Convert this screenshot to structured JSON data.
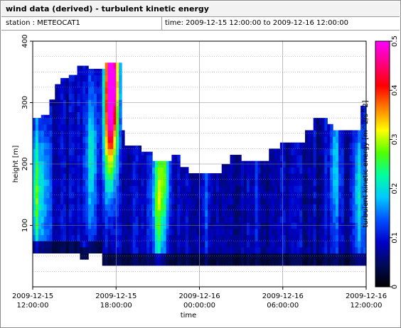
{
  "header": {
    "title": "wind data (derived) - turbulent kinetic energy",
    "station_label": "station : METEOCAT1",
    "time_label": "time: 2009-12-15 12:00:00 to 2009-12-16 12:00:00"
  },
  "chart_data": {
    "type": "heatmap",
    "xlabel": "time",
    "ylabel": "height [m]",
    "colorbar_label": "turbulent kinetic energy [m^2/s^2]",
    "xlim_hours": [
      0,
      24
    ],
    "ylim": [
      0,
      400
    ],
    "x_ticks": [
      {
        "hours": 0,
        "line1": "2009-12-15",
        "line2": "12:00:00"
      },
      {
        "hours": 6,
        "line1": "2009-12-15",
        "line2": "18:00:00"
      },
      {
        "hours": 12,
        "line1": "2009-12-16",
        "line2": "00:00:00"
      },
      {
        "hours": 18,
        "line1": "2009-12-16",
        "line2": "06:00:00"
      },
      {
        "hours": 24,
        "line1": "2009-12-16",
        "line2": "12:00:00"
      }
    ],
    "y_ticks": [
      100,
      200,
      300,
      400
    ],
    "colorbar_ticks": [
      0,
      0.1,
      0.2,
      0.3,
      0.4,
      0.5
    ],
    "colorbar_range": [
      0,
      0.5
    ],
    "grid": true,
    "colormap": [
      "#000000",
      "#000a5a",
      "#0000c8",
      "#0050ff",
      "#00c8ff",
      "#00ffa0",
      "#50ff00",
      "#ffff00",
      "#ff8000",
      "#ff0000",
      "#ff0080",
      "#ff00ff"
    ],
    "profile_top": [
      [
        0.0,
        275
      ],
      [
        0.4,
        275
      ],
      [
        0.7,
        280
      ],
      [
        1.2,
        305
      ],
      [
        1.6,
        330
      ],
      [
        2.0,
        340
      ],
      [
        2.5,
        345
      ],
      [
        3.2,
        360
      ],
      [
        4.0,
        355
      ],
      [
        5.2,
        365
      ],
      [
        6.0,
        365
      ],
      [
        6.4,
        255
      ],
      [
        6.6,
        230
      ],
      [
        7.8,
        220
      ],
      [
        8.6,
        205
      ],
      [
        9.2,
        205
      ],
      [
        10.0,
        215
      ],
      [
        10.6,
        195
      ],
      [
        11.2,
        185
      ],
      [
        13.0,
        185
      ],
      [
        13.6,
        200
      ],
      [
        14.2,
        215
      ],
      [
        15.0,
        205
      ],
      [
        16.3,
        205
      ],
      [
        17.0,
        225
      ],
      [
        17.8,
        235
      ],
      [
        19.2,
        235
      ],
      [
        19.6,
        255
      ],
      [
        20.2,
        275
      ],
      [
        21.2,
        265
      ],
      [
        21.6,
        255
      ],
      [
        23.2,
        255
      ],
      [
        23.6,
        295
      ],
      [
        24.0,
        295
      ]
    ],
    "profile_bottom": [
      [
        0.0,
        55
      ],
      [
        3.0,
        55
      ],
      [
        3.5,
        45
      ],
      [
        4.0,
        55
      ],
      [
        4.8,
        55
      ],
      [
        5.0,
        35
      ],
      [
        24.0,
        35
      ]
    ],
    "tke_hotspots": [
      {
        "t": 0.25,
        "h": 150,
        "value": 0.22
      },
      {
        "t": 1.0,
        "h": 160,
        "value": 0.13
      },
      {
        "t": 4.2,
        "h": 210,
        "value": 0.17
      },
      {
        "t": 5.7,
        "h": 350,
        "value": 0.5
      },
      {
        "t": 5.5,
        "h": 250,
        "value": 0.25
      },
      {
        "t": 9.0,
        "h": 140,
        "value": 0.21
      },
      {
        "t": 9.5,
        "h": 200,
        "value": 0.2
      },
      {
        "t": 12.5,
        "h": 150,
        "value": 0.1
      },
      {
        "t": 16.0,
        "h": 150,
        "value": 0.08
      },
      {
        "t": 21.8,
        "h": 200,
        "value": 0.14
      },
      {
        "t": 23.5,
        "h": 150,
        "value": 0.16
      }
    ]
  }
}
